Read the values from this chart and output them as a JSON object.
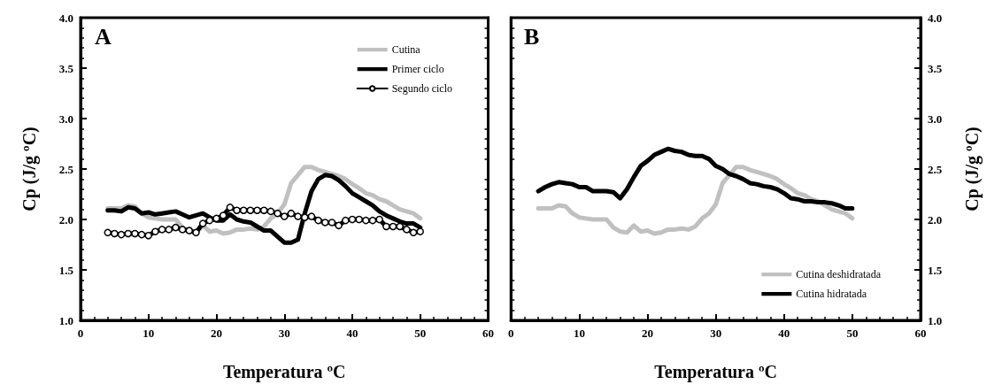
{
  "chart_data": [
    {
      "type": "line",
      "annotations": [
        "A"
      ],
      "xlabel": "Temperatura ºC",
      "ylabel": "Cp (J/g ºC)",
      "x": [
        4,
        5,
        6,
        7,
        8,
        9,
        10,
        11,
        12,
        13,
        14,
        15,
        16,
        17,
        18,
        19,
        20,
        21,
        22,
        23,
        24,
        25,
        26,
        27,
        28,
        29,
        30,
        31,
        32,
        33,
        34,
        35,
        36,
        37,
        38,
        39,
        40,
        41,
        42,
        43,
        44,
        45,
        46,
        47,
        48,
        49,
        50
      ],
      "xlim": [
        0,
        60
      ],
      "xticks": [
        0,
        10,
        20,
        30,
        40,
        50,
        60
      ],
      "ylim": [
        1,
        4
      ],
      "yticks": [
        {
          "value": 1,
          "label": "1.0"
        },
        {
          "value": 1.5,
          "label": "1.5"
        },
        {
          "value": 2,
          "label": "2.0"
        },
        {
          "value": 2.5,
          "label": "2.5"
        },
        {
          "value": 3,
          "label": "3.0"
        },
        {
          "value": 3.5,
          "label": "3.5"
        },
        {
          "value": 4,
          "label": "4.0"
        }
      ],
      "legend": "top right",
      "grid": false,
      "marker": "none",
      "line_style": "solid",
      "series": [
        {
          "name": "Cutina",
          "color": "#c0c0c0",
          "values": [
            2.11,
            2.11,
            2.11,
            2.14,
            2.13,
            2.06,
            2.02,
            2.01,
            2.0,
            2.0,
            2.0,
            1.92,
            1.88,
            1.87,
            1.94,
            1.88,
            1.89,
            1.86,
            1.87,
            1.9,
            1.9,
            1.91,
            1.9,
            1.93,
            2.01,
            2.06,
            2.15,
            2.36,
            2.44,
            2.52,
            2.52,
            2.49,
            2.47,
            2.45,
            2.43,
            2.4,
            2.35,
            2.31,
            2.26,
            2.24,
            2.2,
            2.18,
            2.14,
            2.1,
            2.08,
            2.06,
            2.01
          ]
        },
        {
          "name": "Primer ciclo",
          "color": "#000000",
          "values": [
            2.09,
            2.09,
            2.08,
            2.12,
            2.11,
            2.06,
            2.07,
            2.05,
            2.06,
            2.07,
            2.08,
            2.05,
            2.02,
            2.04,
            2.06,
            2.02,
            1.99,
            1.99,
            2.05,
            2.0,
            1.98,
            1.97,
            1.93,
            1.89,
            1.89,
            1.83,
            1.77,
            1.77,
            1.8,
            2.06,
            2.28,
            2.4,
            2.44,
            2.43,
            2.39,
            2.33,
            2.26,
            2.22,
            2.18,
            2.14,
            2.08,
            2.04,
            2.01,
            1.98,
            1.96,
            1.96,
            1.92
          ]
        },
        {
          "name": "Segundo ciclo",
          "color": "#000000",
          "marker": "circle",
          "values": [
            1.87,
            1.86,
            1.85,
            1.86,
            1.86,
            1.85,
            1.84,
            1.88,
            1.9,
            1.9,
            1.92,
            1.9,
            1.89,
            1.87,
            1.96,
            1.99,
            2.01,
            2.04,
            2.12,
            2.09,
            2.09,
            2.09,
            2.09,
            2.09,
            2.08,
            2.06,
            2.03,
            2.06,
            2.03,
            2.02,
            2.03,
            1.99,
            1.97,
            1.97,
            1.94,
            1.99,
            2.0,
            2.0,
            1.99,
            1.99,
            2.0,
            1.93,
            1.93,
            1.93,
            1.9,
            1.87,
            1.88
          ]
        }
      ]
    },
    {
      "type": "line",
      "annotations": [
        "B"
      ],
      "xlabel": "Temperatura ºC",
      "y2label": "Cp (J/g ºC)",
      "x": [
        4,
        5,
        6,
        7,
        8,
        9,
        10,
        11,
        12,
        13,
        14,
        15,
        16,
        17,
        18,
        19,
        20,
        21,
        22,
        23,
        24,
        25,
        26,
        27,
        28,
        29,
        30,
        31,
        32,
        33,
        34,
        35,
        36,
        37,
        38,
        39,
        40,
        41,
        42,
        43,
        44,
        45,
        46,
        47,
        48,
        49,
        50
      ],
      "xlim": [
        0,
        60
      ],
      "xticks": [
        0,
        10,
        20,
        30,
        40,
        50,
        60
      ],
      "y2lim": [
        1,
        4
      ],
      "y2ticks": [
        {
          "value": 1,
          "label": "1.0"
        },
        {
          "value": 1.5,
          "label": "1.5"
        },
        {
          "value": 2,
          "label": "2.0"
        },
        {
          "value": 2.5,
          "label": "2.5"
        },
        {
          "value": 3,
          "label": "3.0"
        },
        {
          "value": 3.5,
          "label": "3.5"
        },
        {
          "value": 4,
          "label": "4.0"
        }
      ],
      "legend": "bottom right",
      "grid": false,
      "marker": "none",
      "line_style": "solid",
      "series": [
        {
          "name": "Cutina deshidratada",
          "color": "#c0c0c0",
          "axis": "y2",
          "values": [
            2.11,
            2.11,
            2.11,
            2.14,
            2.13,
            2.06,
            2.02,
            2.01,
            2.0,
            2.0,
            2.0,
            1.92,
            1.88,
            1.87,
            1.94,
            1.88,
            1.89,
            1.86,
            1.87,
            1.9,
            1.9,
            1.91,
            1.9,
            1.93,
            2.01,
            2.06,
            2.15,
            2.36,
            2.44,
            2.52,
            2.52,
            2.49,
            2.47,
            2.45,
            2.43,
            2.4,
            2.35,
            2.31,
            2.26,
            2.24,
            2.2,
            2.18,
            2.14,
            2.1,
            2.08,
            2.06,
            2.01
          ]
        },
        {
          "name": "Cutina hidratada",
          "color": "#000000",
          "axis": "y2",
          "values": [
            2.28,
            2.32,
            2.35,
            2.37,
            2.36,
            2.35,
            2.32,
            2.32,
            2.28,
            2.28,
            2.28,
            2.27,
            2.21,
            2.3,
            2.42,
            2.53,
            2.58,
            2.64,
            2.67,
            2.7,
            2.68,
            2.67,
            2.64,
            2.63,
            2.63,
            2.6,
            2.53,
            2.5,
            2.45,
            2.43,
            2.4,
            2.36,
            2.35,
            2.33,
            2.32,
            2.3,
            2.26,
            2.21,
            2.2,
            2.18,
            2.18,
            2.17,
            2.17,
            2.16,
            2.14,
            2.11,
            2.11
          ]
        }
      ]
    }
  ]
}
